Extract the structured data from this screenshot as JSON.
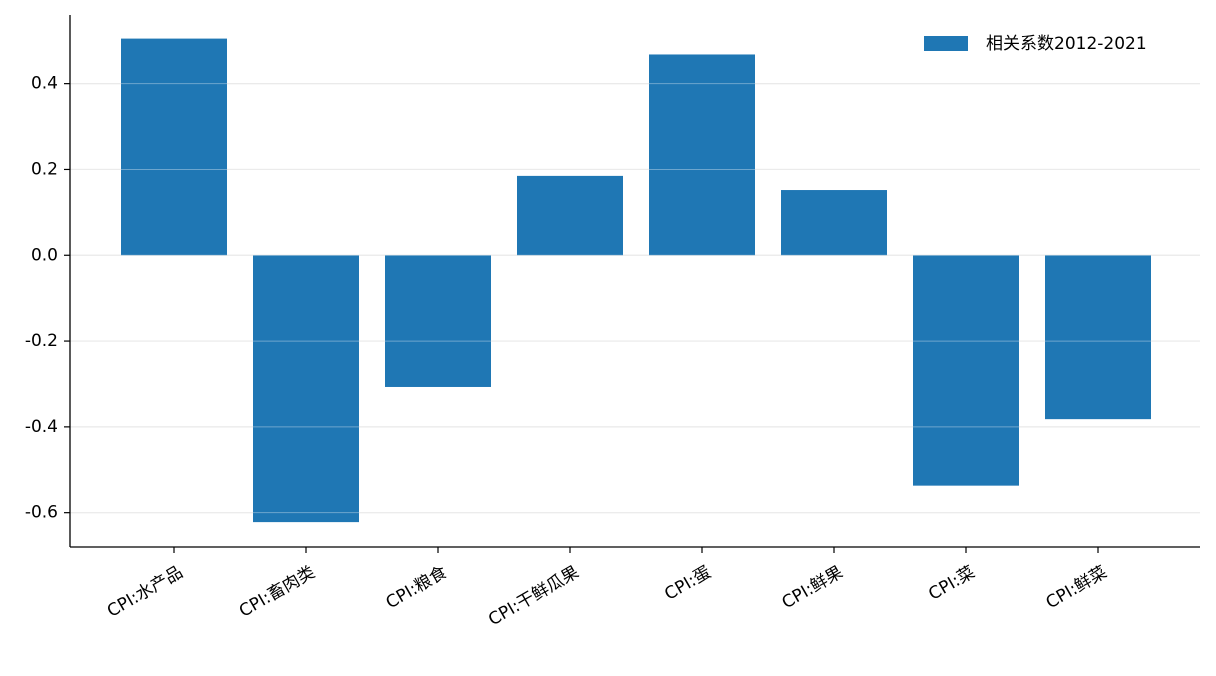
{
  "chart_data": {
    "type": "bar",
    "title": "",
    "xlabel": "",
    "ylabel": "",
    "categories": [
      "CPI:水产品",
      "CPI:畜肉类",
      "CPI:粮食",
      "CPI:干鲜瓜果",
      "CPI:蛋",
      "CPI:鲜果",
      "CPI:菜",
      "CPI:鲜菜"
    ],
    "series": [
      {
        "name": "相关系数2012-2021",
        "values": [
          0.505,
          -0.622,
          -0.307,
          0.185,
          0.468,
          0.152,
          -0.537,
          -0.382
        ],
        "color": "#1f77b4"
      }
    ],
    "ylim": [
      -0.68,
      0.56
    ],
    "yticks": [
      0.4,
      0.2,
      0.0,
      -0.2,
      -0.4,
      -0.6
    ],
    "ytick_labels": [
      "0.4",
      "0.2",
      "0.0",
      "-0.2",
      "-0.4",
      "-0.6"
    ],
    "grid": "horizontal",
    "legend": "top-right",
    "x_tick_rotation": 30
  }
}
